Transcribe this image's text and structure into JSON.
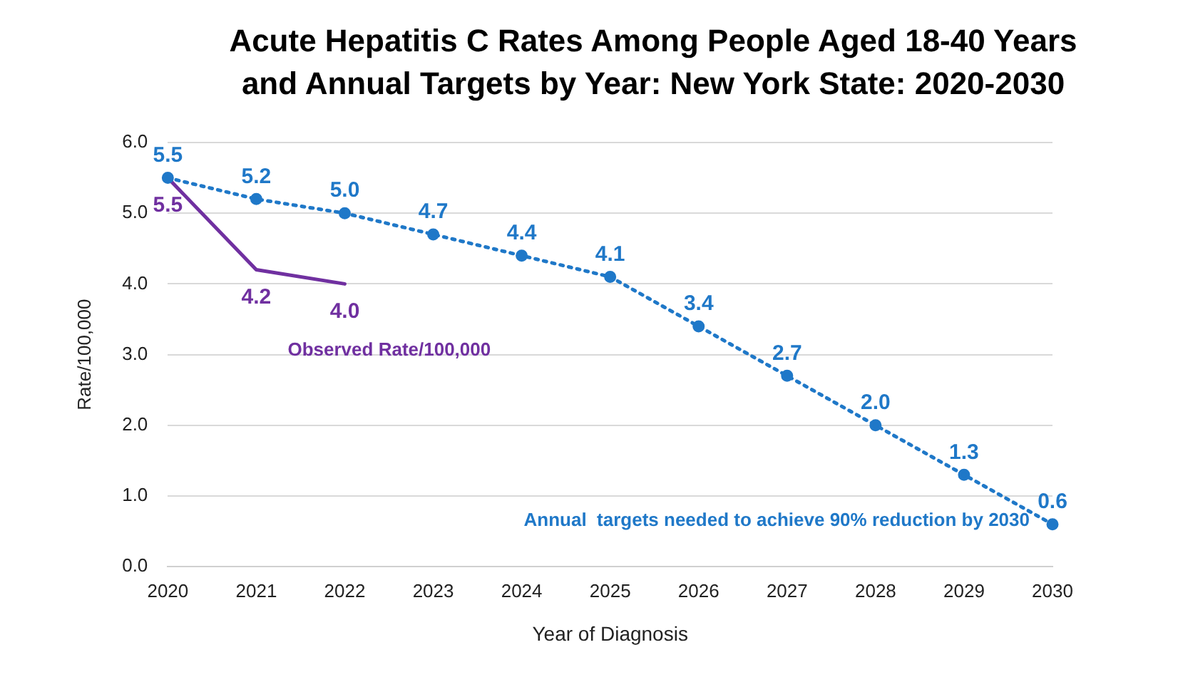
{
  "chart_data": {
    "type": "line",
    "title": "Acute Hepatitis C Rates Among People Aged 18-40 Years and Annual Targets by Year: New York State: 2020-2030",
    "xlabel": "Year of Diagnosis",
    "ylabel": "Rate/100,000",
    "categories": [
      "2020",
      "2021",
      "2022",
      "2023",
      "2024",
      "2025",
      "2026",
      "2027",
      "2028",
      "2029",
      "2030"
    ],
    "series": [
      {
        "name": "Annual  targets needed to achieve 90% reduction by 2030",
        "color": "#1f78c8",
        "values": [
          5.5,
          5.2,
          5.0,
          4.7,
          4.4,
          4.1,
          3.4,
          2.7,
          2.0,
          1.3,
          0.6
        ],
        "value_labels": [
          "5.5",
          "5.2",
          "5.0",
          "4.7",
          "4.4",
          "4.1",
          "3.4",
          "2.7",
          "2.0",
          "1.3",
          "0.6"
        ],
        "marker": "circle",
        "line_style": "dotted"
      },
      {
        "name": "Observed Rate/100,000",
        "color": "#7030a0",
        "values": [
          5.5,
          4.2,
          4.0,
          null,
          null,
          null,
          null,
          null,
          null,
          null,
          null
        ],
        "value_labels": [
          "5.5",
          "4.2",
          "4.0",
          null,
          null,
          null,
          null,
          null,
          null,
          null,
          null
        ],
        "marker": "none",
        "line_style": "solid"
      }
    ],
    "ylim": [
      0,
      6
    ],
    "yticks": [
      {
        "value": 0,
        "label": "0.0"
      },
      {
        "value": 1,
        "label": "1.0"
      },
      {
        "value": 2,
        "label": "2.0"
      },
      {
        "value": 3,
        "label": "3.0"
      },
      {
        "value": 4,
        "label": "4.0"
      },
      {
        "value": 5,
        "label": "5.0"
      },
      {
        "value": 6,
        "label": "6.0"
      }
    ],
    "grid": "y",
    "legend": false
  }
}
